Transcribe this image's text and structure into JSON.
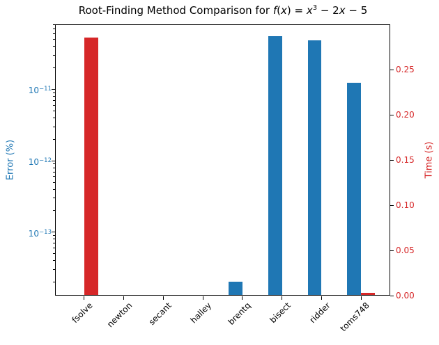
{
  "title": {
    "text": "Root-Finding Method Comparison for f(x) = x³ − 2x − 5",
    "segments": [
      {
        "text": "Root-Finding Method Comparison for ",
        "style": "normal"
      },
      {
        "text": "f",
        "style": "italic"
      },
      {
        "text": "(",
        "style": "normal"
      },
      {
        "text": "x",
        "style": "italic"
      },
      {
        "text": ") = ",
        "style": "normal"
      },
      {
        "text": "x",
        "style": "italic"
      },
      {
        "text": "3",
        "style": "super"
      },
      {
        "text": " − 2",
        "style": "normal"
      },
      {
        "text": "x",
        "style": "italic"
      },
      {
        "text": " − 5",
        "style": "normal"
      }
    ]
  },
  "chart_data": {
    "type": "bar",
    "categories": [
      "fsolve",
      "newton",
      "secant",
      "halley",
      "brentq",
      "bisect",
      "ridder",
      "toms748"
    ],
    "series": [
      {
        "name": "Error (%)",
        "axis": "left",
        "color": "#1f77b4",
        "values": [
          0,
          0,
          0,
          0,
          2e-14,
          5.4e-11,
          4.7e-11,
          1.2e-11
        ]
      },
      {
        "name": "Time (s)",
        "axis": "right",
        "color": "#d62728",
        "values": [
          0.285,
          0,
          0,
          0,
          0,
          0,
          0,
          0.0025
        ]
      }
    ],
    "left_axis": {
      "label": "Error (%)",
      "scale": "log",
      "color": "#1f77b4",
      "tick_exponents": [
        -11,
        -12,
        -13
      ],
      "range": [
        1.3e-14,
        8.1e-11
      ]
    },
    "right_axis": {
      "label": "Time (s)",
      "scale": "linear",
      "color": "#d62728",
      "ticks": [
        "0.00",
        "0.05",
        "0.10",
        "0.15",
        "0.20",
        "0.25"
      ],
      "tick_values": [
        0,
        0.05,
        0.1,
        0.15,
        0.2,
        0.25
      ],
      "range": [
        0,
        0.3
      ]
    },
    "x_axis": {
      "label_rotation": 45
    },
    "legend": "none",
    "grid": false,
    "bar_width_fraction": 0.35
  },
  "colors": {
    "background": "#ffffff",
    "spine": "#000000",
    "tick_mark": "#000000",
    "error_series": "#1f77b4",
    "time_series": "#d62728"
  }
}
